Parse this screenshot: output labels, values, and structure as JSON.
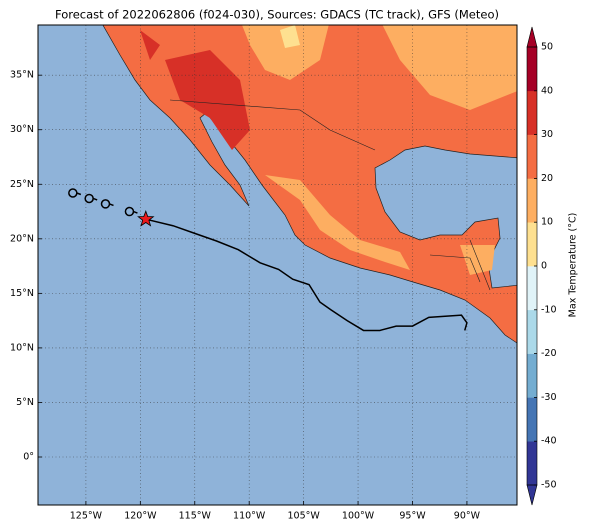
{
  "chart_data": {
    "type": "map",
    "title": "Forecast of 2022062806 (f024-030), Sources: GDACS (TC track), GFS (Meteo)",
    "xlim": [
      -129.4,
      -85.4
    ],
    "ylim": [
      -4.4,
      39.6
    ],
    "xticks": [
      {
        "value": -125,
        "label": "125°W"
      },
      {
        "value": -120,
        "label": "120°W"
      },
      {
        "value": -115,
        "label": "115°W"
      },
      {
        "value": -110,
        "label": "110°W"
      },
      {
        "value": -105,
        "label": "105°W"
      },
      {
        "value": -100,
        "label": "100°W"
      },
      {
        "value": -95,
        "label": "95°W"
      },
      {
        "value": -90,
        "label": "90°W"
      }
    ],
    "yticks": [
      {
        "value": 0,
        "label": "0°"
      },
      {
        "value": 5,
        "label": "5°N"
      },
      {
        "value": 10,
        "label": "10°N"
      },
      {
        "value": 15,
        "label": "15°N"
      },
      {
        "value": 20,
        "label": "20°N"
      },
      {
        "value": 25,
        "label": "25°N"
      },
      {
        "value": 30,
        "label": "30°N"
      },
      {
        "value": 35,
        "label": "35°N"
      }
    ],
    "grid": true,
    "track": {
      "lon": [
        -119.5,
        -117,
        -115,
        -113,
        -111,
        -109,
        -107.3,
        -106,
        -104.5,
        -103.5,
        -102.5,
        -101,
        -99.5,
        -98,
        -96.5,
        -95,
        -93.5,
        -92,
        -90.5,
        -90,
        -90.2
      ],
      "lat": [
        21.8,
        21.2,
        20.5,
        19.8,
        19,
        17.8,
        17.2,
        16.3,
        15.8,
        14.2,
        13.5,
        12.5,
        11.6,
        11.6,
        12,
        12,
        12.8,
        12.9,
        13,
        12.3,
        11.6
      ]
    },
    "past_positions": {
      "lon": [
        -126.2,
        -124.7,
        -123.2,
        -121
      ],
      "lat": [
        24.2,
        23.7,
        23.2,
        22.5
      ]
    },
    "current_position": {
      "lon": -119.5,
      "lat": 21.8
    },
    "colorbar": {
      "label": "Max Temperature (°C)",
      "lim": [
        -50,
        50
      ],
      "ticks": [
        -50,
        -40,
        -30,
        -20,
        -10,
        0,
        10,
        20,
        30,
        40,
        50
      ],
      "colors": [
        "#313695",
        "#4575b4",
        "#74add1",
        "#abd9e9",
        "#e0f3f8",
        "#fee090",
        "#fdae61",
        "#f46d43",
        "#d73027",
        "#a50026"
      ]
    }
  }
}
